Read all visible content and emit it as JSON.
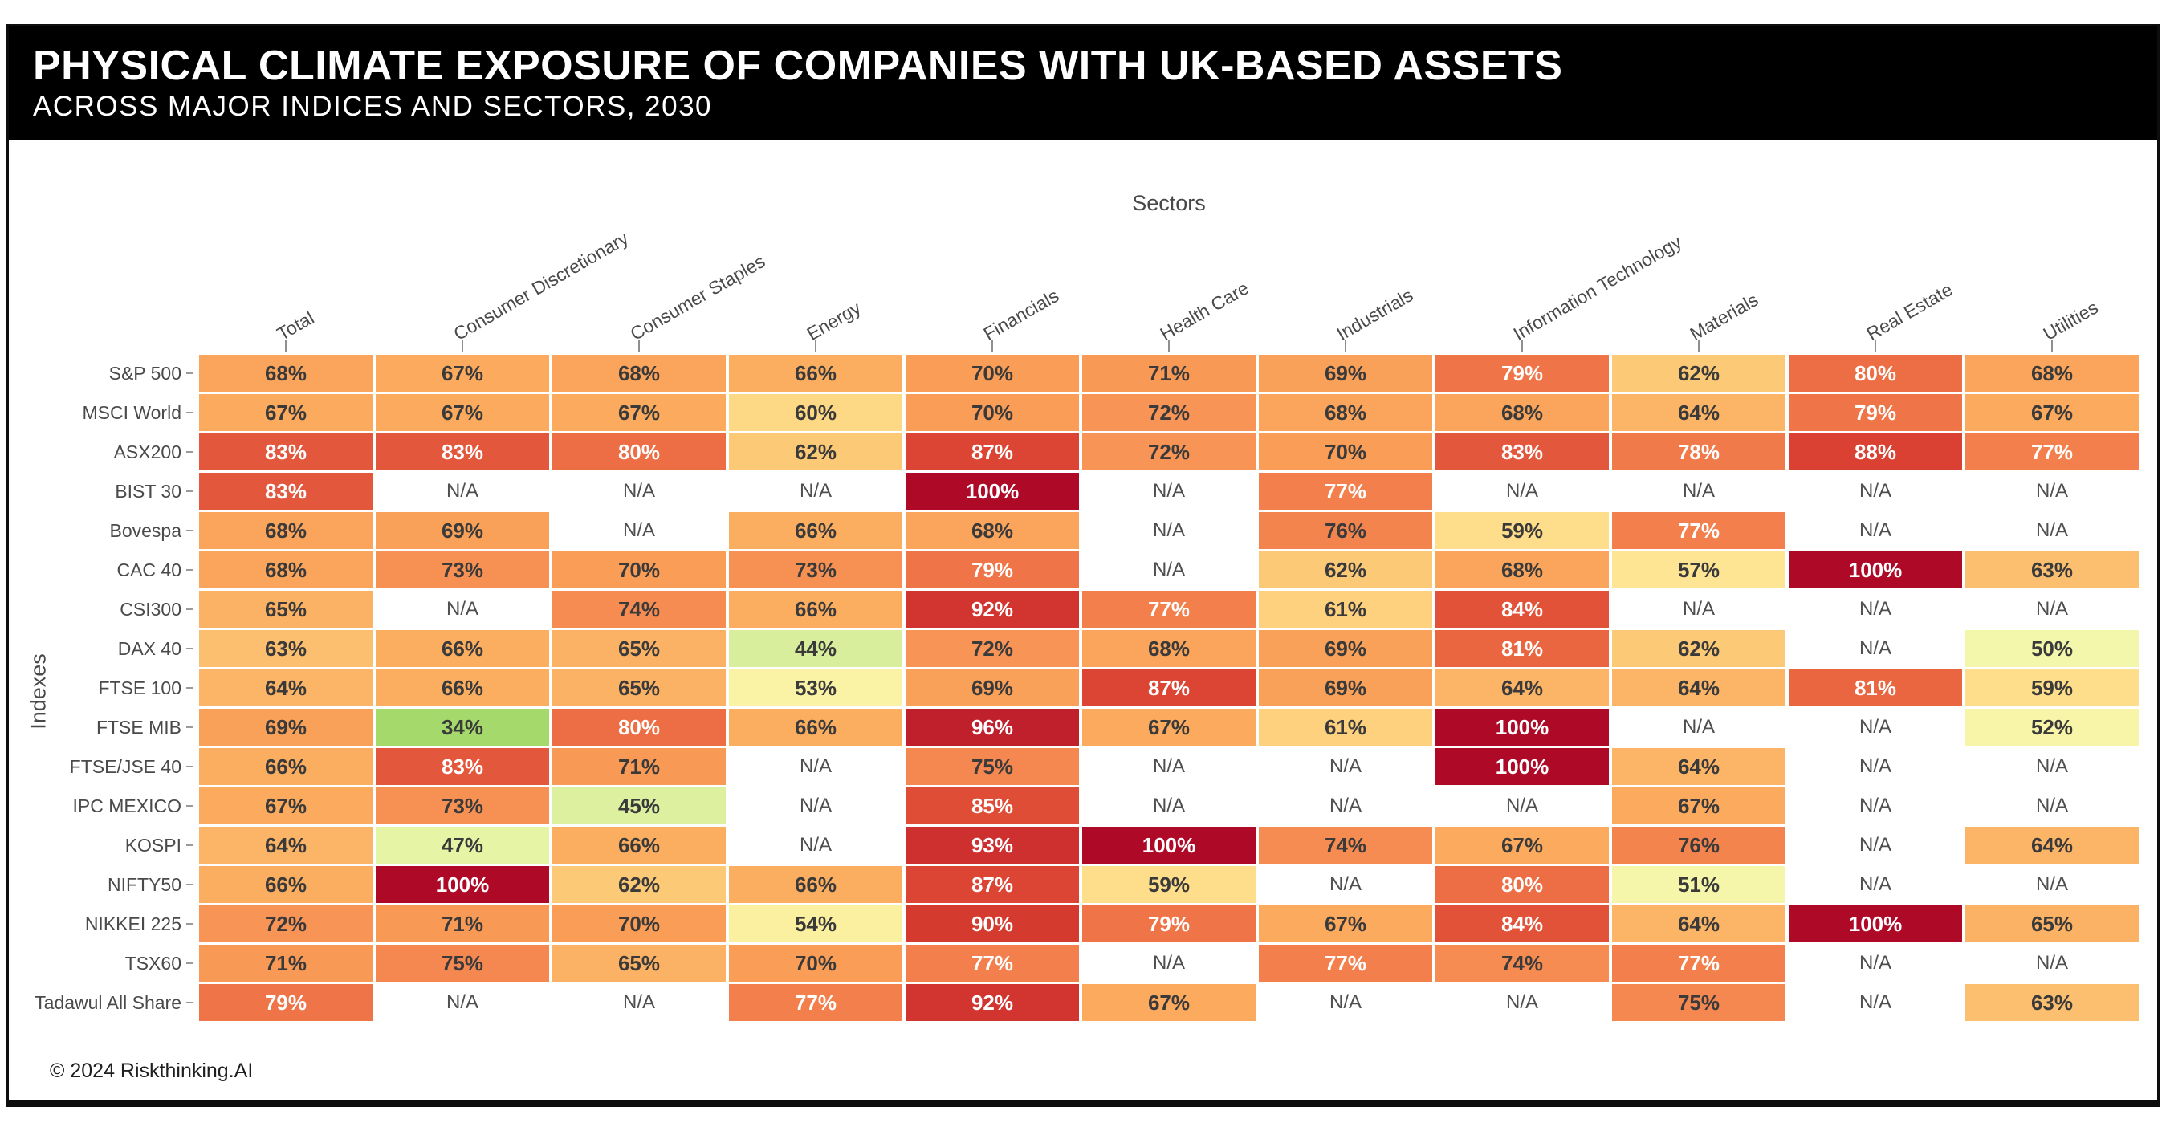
{
  "header": {
    "title": "PHYSICAL CLIMATE EXPOSURE OF COMPANIES WITH UK-BASED ASSETS",
    "subtitle": "ACROSS MAJOR INDICES AND SECTORS, 2030"
  },
  "footer": {
    "copyright": "© 2024 Riskthinking.AI"
  },
  "chart_data": {
    "type": "heatmap",
    "x_axis_label": "Sectors",
    "y_axis_label": "Indexes",
    "unit": "%",
    "na_label": "N/A",
    "columns": [
      "Total",
      "Consumer Discretionary",
      "Consumer Staples",
      "Energy",
      "Financials",
      "Health Care",
      "Industrials",
      "Information Technology",
      "Materials",
      "Real Estate",
      "Utilities"
    ],
    "rows": [
      "S&P 500",
      "MSCI World",
      "ASX200",
      "BIST 30",
      "Bovespa",
      "CAC 40",
      "CSI300",
      "DAX 40",
      "FTSE 100",
      "FTSE MIB",
      "FTSE/JSE 40",
      "IPC MEXICO",
      "KOSPI",
      "NIFTY50",
      "NIKKEI 225",
      "TSX60",
      "Tadawul All Share"
    ],
    "values": [
      [
        68,
        67,
        68,
        66,
        70,
        71,
        69,
        79,
        62,
        80,
        68
      ],
      [
        67,
        67,
        67,
        60,
        70,
        72,
        68,
        68,
        64,
        79,
        67
      ],
      [
        83,
        83,
        80,
        62,
        87,
        72,
        70,
        83,
        78,
        88,
        77
      ],
      [
        83,
        null,
        null,
        null,
        100,
        null,
        77,
        null,
        null,
        null,
        null
      ],
      [
        68,
        69,
        null,
        66,
        68,
        null,
        76,
        59,
        77,
        null,
        null
      ],
      [
        68,
        73,
        70,
        73,
        79,
        null,
        62,
        68,
        57,
        100,
        63
      ],
      [
        65,
        null,
        74,
        66,
        92,
        77,
        61,
        84,
        null,
        null,
        null
      ],
      [
        63,
        66,
        65,
        44,
        72,
        68,
        69,
        81,
        62,
        null,
        50
      ],
      [
        64,
        66,
        65,
        53,
        69,
        87,
        69,
        64,
        64,
        81,
        59
      ],
      [
        69,
        34,
        80,
        66,
        96,
        67,
        61,
        100,
        null,
        null,
        52
      ],
      [
        66,
        83,
        71,
        null,
        75,
        null,
        null,
        100,
        64,
        null,
        null
      ],
      [
        67,
        73,
        45,
        null,
        85,
        null,
        null,
        null,
        67,
        null,
        null
      ],
      [
        64,
        47,
        66,
        null,
        93,
        100,
        74,
        67,
        76,
        null,
        64
      ],
      [
        66,
        100,
        62,
        66,
        87,
        59,
        null,
        80,
        51,
        null,
        null
      ],
      [
        72,
        71,
        70,
        54,
        90,
        79,
        67,
        84,
        64,
        100,
        65
      ],
      [
        71,
        75,
        65,
        70,
        77,
        null,
        77,
        74,
        77,
        null,
        null
      ],
      [
        79,
        null,
        null,
        77,
        92,
        67,
        null,
        null,
        75,
        null,
        63
      ]
    ],
    "colormap": {
      "na_color": "#ffffff",
      "white_text_threshold": 77,
      "stops": [
        [
          34,
          "#a5d96b"
        ],
        [
          40,
          "#c9e687"
        ],
        [
          44,
          "#d8ee9d"
        ],
        [
          47,
          "#e6f4a6"
        ],
        [
          50,
          "#f3f7ab"
        ],
        [
          52,
          "#f8f5a9"
        ],
        [
          54,
          "#fbf0a0"
        ],
        [
          57,
          "#fde594"
        ],
        [
          59,
          "#fede8b"
        ],
        [
          60,
          "#fdd985"
        ],
        [
          62,
          "#fcc976"
        ],
        [
          64,
          "#fcb567"
        ],
        [
          66,
          "#fbae60"
        ],
        [
          68,
          "#faa55b"
        ],
        [
          70,
          "#f99d57"
        ],
        [
          72,
          "#f89455"
        ],
        [
          74,
          "#f68c51"
        ],
        [
          76,
          "#f4844e"
        ],
        [
          78,
          "#f07a4a"
        ],
        [
          80,
          "#ed6d44"
        ],
        [
          83,
          "#e3573c"
        ],
        [
          85,
          "#df4d36"
        ],
        [
          87,
          "#dc4533"
        ],
        [
          90,
          "#d53a2f"
        ],
        [
          92,
          "#d23430"
        ],
        [
          94,
          "#c92a2e"
        ],
        [
          96,
          "#c01f2c"
        ],
        [
          100,
          "#ae0927"
        ]
      ]
    }
  }
}
